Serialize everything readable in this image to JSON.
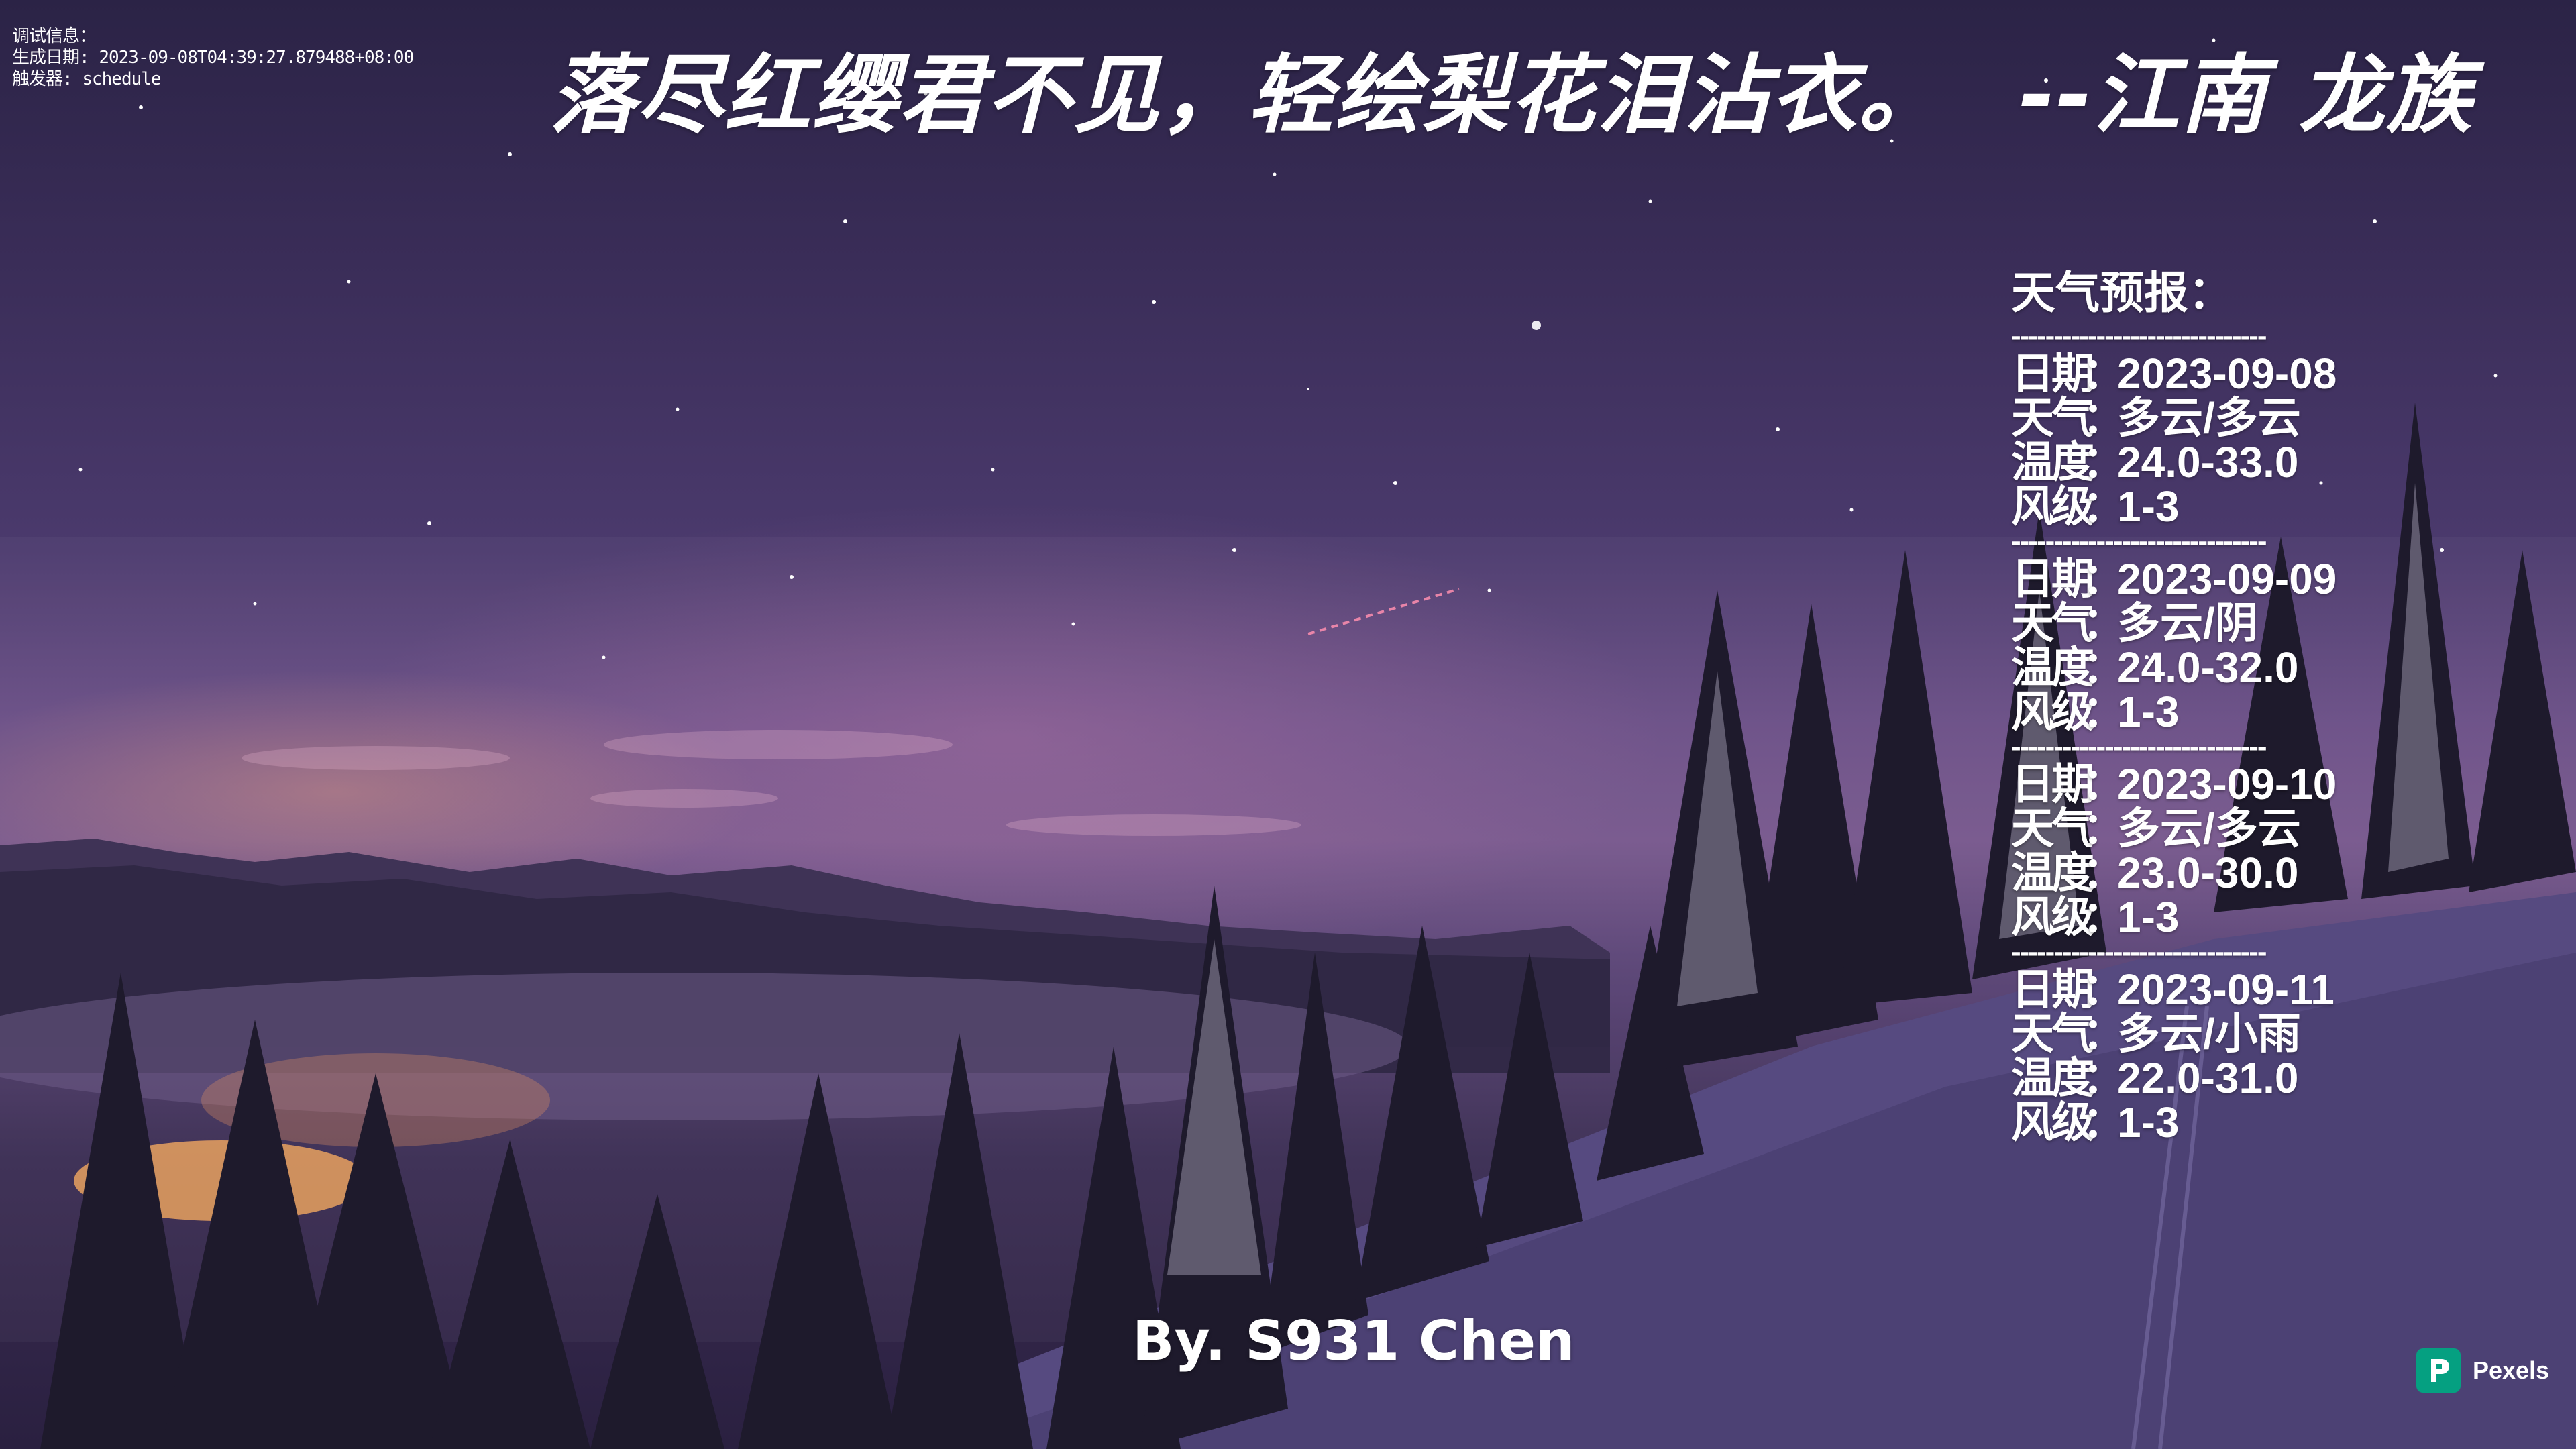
{
  "debug": {
    "info_label": "调试信息：",
    "gen_date_label": "生成日期",
    "gen_date_value": "2023-09-08T04:39:27.879488+08:00",
    "trigger_label": "触发器",
    "trigger_value": "schedule"
  },
  "poem": {
    "text": "落尽红缨君不见，轻绘梨花泪沾衣。",
    "author": "--江南 龙族"
  },
  "weather": {
    "title": "天气预报：",
    "divider": "------------------------------",
    "labels": {
      "date": "日期",
      "weather": "天气",
      "temp": "温度",
      "wind": "风级",
      "sep": "："
    },
    "days": [
      {
        "date": "2023-09-08",
        "weather": "多云/多云",
        "temp": "24.0-33.0",
        "wind": "1-3"
      },
      {
        "date": "2023-09-09",
        "weather": "多云/阴",
        "temp": "24.0-32.0",
        "wind": "1-3"
      },
      {
        "date": "2023-09-10",
        "weather": "多云/多云",
        "temp": "23.0-30.0",
        "wind": "1-3"
      },
      {
        "date": "2023-09-11",
        "weather": "多云/小雨",
        "temp": "22.0-31.0",
        "wind": "1-3"
      }
    ]
  },
  "signature": "By. S931 Chen",
  "watermark": {
    "brand": "Pexels",
    "color": "#05a081"
  }
}
